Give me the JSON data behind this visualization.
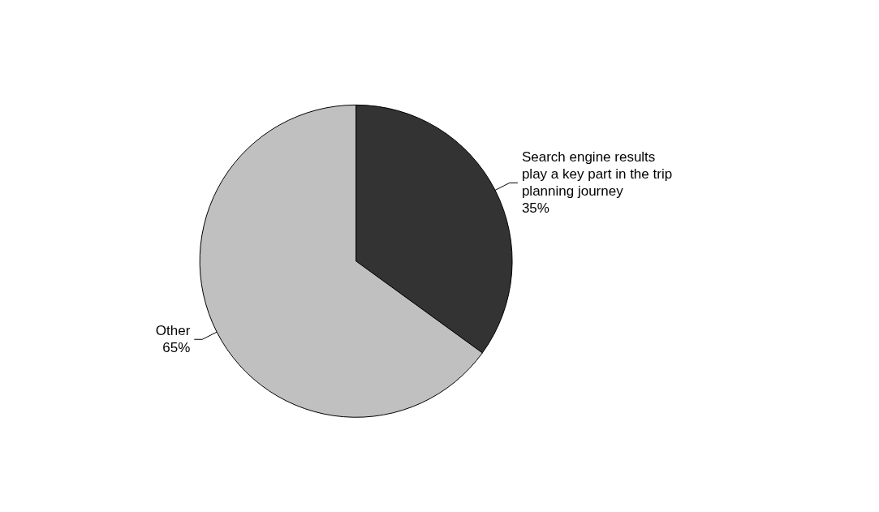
{
  "chart_data": {
    "type": "pie",
    "categories": [
      "Search engine results play a key part in the trip planning journey",
      "Other"
    ],
    "values": [
      35,
      65
    ],
    "value_labels": [
      "35%",
      "65%"
    ],
    "colors": [
      "#333333",
      "#c0c0c0"
    ],
    "legend": false
  }
}
